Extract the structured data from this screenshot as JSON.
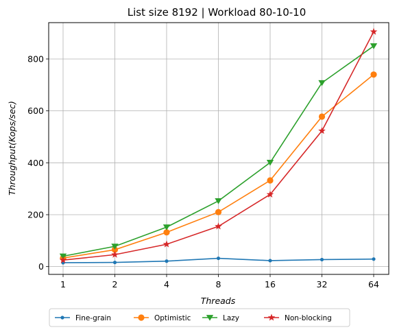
{
  "chart_data": {
    "type": "line",
    "title": "List size 8192 | Workload 80-10-10",
    "xlabel": "Threads",
    "ylabel": "Throughput(Kops/sec)",
    "categories": [
      "1",
      "2",
      "4",
      "8",
      "16",
      "32",
      "64"
    ],
    "ylim": [
      -30,
      940
    ],
    "yticks": [
      0,
      200,
      400,
      600,
      800
    ],
    "grid": true,
    "legend_position": "bottom-center",
    "series": [
      {
        "name": "Fine-grain",
        "color": "#1f77b4",
        "marker": "point",
        "values": [
          15,
          16,
          21,
          32,
          23,
          27,
          29
        ]
      },
      {
        "name": "Optimistic",
        "color": "#ff7f0e",
        "marker": "circle",
        "values": [
          33,
          65,
          132,
          210,
          332,
          578,
          740
        ]
      },
      {
        "name": "Lazy",
        "color": "#2ca02c",
        "marker": "triangle-down",
        "values": [
          40,
          78,
          152,
          253,
          401,
          708,
          850
        ]
      },
      {
        "name": "Non-blocking",
        "color": "#d62728",
        "marker": "star",
        "values": [
          25,
          46,
          86,
          155,
          278,
          523,
          905
        ]
      }
    ]
  }
}
